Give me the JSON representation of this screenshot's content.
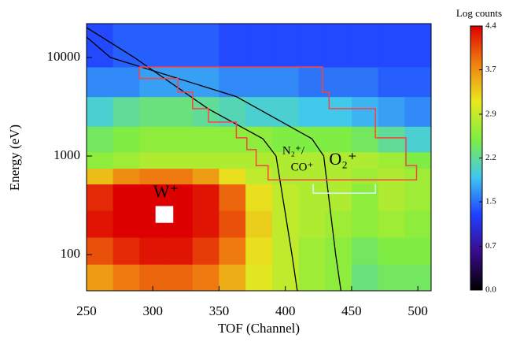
{
  "chart_data": {
    "type": "heatmap",
    "xlabel": "TOF (Channel)",
    "ylabel": "Energy (eV)",
    "xlim": [
      250,
      510
    ],
    "xticks": [
      250,
      300,
      350,
      400,
      450,
      500
    ],
    "ylim": [
      43,
      22000
    ],
    "yscale": "log",
    "yticks": [
      100,
      1000,
      10000
    ],
    "x_edges": [
      250,
      270,
      290,
      310,
      330,
      350,
      370,
      390,
      410,
      430,
      450,
      470,
      490,
      510
    ],
    "y_edges": [
      43,
      80,
      150,
      280,
      520,
      750,
      1100,
      2000,
      4000,
      8000,
      22000
    ],
    "z": [
      [
        3.6,
        3.8,
        3.9,
        3.9,
        3.8,
        3.5,
        3.1,
        2.9,
        2.7,
        2.6,
        2.3,
        2.4,
        2.4
      ],
      [
        4.0,
        4.2,
        4.3,
        4.3,
        4.1,
        3.8,
        3.2,
        2.9,
        2.7,
        2.6,
        2.4,
        2.5,
        2.5
      ],
      [
        4.3,
        4.4,
        4.4,
        4.4,
        4.3,
        4.0,
        3.3,
        2.9,
        2.8,
        2.7,
        2.6,
        2.7,
        2.6
      ],
      [
        4.2,
        4.4,
        4.4,
        4.4,
        4.3,
        3.9,
        3.2,
        2.9,
        2.8,
        2.8,
        2.6,
        2.8,
        2.7
      ],
      [
        3.4,
        3.7,
        3.8,
        3.8,
        3.6,
        3.2,
        2.9,
        2.8,
        2.8,
        2.8,
        2.7,
        2.8,
        2.7
      ],
      [
        2.6,
        2.7,
        2.8,
        2.8,
        2.8,
        2.8,
        2.8,
        2.8,
        2.8,
        2.8,
        2.8,
        2.7,
        2.5
      ],
      [
        2.4,
        2.5,
        2.6,
        2.6,
        2.6,
        2.6,
        2.6,
        2.5,
        2.5,
        2.5,
        2.4,
        2.2,
        2.0
      ],
      [
        2.0,
        2.2,
        2.3,
        2.3,
        2.2,
        2.1,
        2.0,
        2.0,
        1.9,
        1.9,
        1.8,
        1.7,
        1.6
      ],
      [
        1.6,
        1.6,
        1.7,
        1.7,
        1.7,
        1.6,
        1.6,
        1.6,
        1.5,
        1.5,
        1.5,
        1.4,
        1.4
      ],
      [
        1.3,
        1.4,
        1.4,
        1.4,
        1.4,
        1.3,
        1.3,
        1.3,
        1.3,
        1.3,
        1.3,
        1.3,
        1.3
      ]
    ],
    "colorbar_title": "Log counts",
    "zlim": [
      0,
      4.4
    ],
    "zticks": [
      {
        "value": 0,
        "label": "0.0"
      },
      {
        "value": 0.73,
        "label": "0.7"
      },
      {
        "value": 1.47,
        "label": "1.5"
      },
      {
        "value": 2.2,
        "label": "2.2"
      },
      {
        "value": 2.93,
        "label": "2.9"
      },
      {
        "value": 3.67,
        "label": "3.7"
      },
      {
        "value": 4.4,
        "label": "4.4"
      }
    ],
    "colorscale": [
      "#000000",
      "#3a0a8a",
      "#2040ff",
      "#40c8f0",
      "#80ee40",
      "#e8e820",
      "#f08010",
      "#dd0000"
    ],
    "curves": [
      {
        "x": [
          250,
          286,
          342,
          383,
          393,
          405,
          409
        ],
        "y": [
          20100,
          10000,
          3000,
          1500,
          1000,
          100,
          43
        ],
        "color": "#000000"
      },
      {
        "x": [
          250,
          268,
          363,
          420,
          429,
          438,
          442
        ],
        "y": [
          16100,
          10000,
          4000,
          1500,
          1000,
          100,
          43
        ],
        "color": "#000000"
      }
    ],
    "regions": [
      {
        "x": [
          290,
          428,
          428,
          433,
          433,
          468,
          468,
          491,
          491,
          499,
          499,
          387,
          387,
          378,
          378,
          371,
          371,
          363,
          363,
          342,
          342,
          330,
          330,
          319,
          319,
          290
        ],
        "y": [
          8000,
          8000,
          4450,
          4450,
          3020,
          3020,
          1530,
          1530,
          800,
          800,
          574,
          574,
          800,
          800,
          1160,
          1160,
          1530,
          1530,
          2210,
          2210,
          3020,
          3020,
          4450,
          4450,
          6100,
          6100
        ],
        "color": "#ff4040"
      },
      {
        "x": [
          302.5,
          315,
          315,
          302.5
        ],
        "y": [
          307,
          307,
          213,
          213
        ],
        "color": "#ffffff",
        "fill": true
      },
      {
        "x": [
          421,
          421,
          468,
          468
        ],
        "y": [
          520,
          420,
          420,
          520
        ],
        "color": "#d8f4ff",
        "open": true
      }
    ],
    "annotations": [
      "W⁺",
      "N₂⁺/",
      "CO⁺",
      "O₂⁺"
    ]
  }
}
